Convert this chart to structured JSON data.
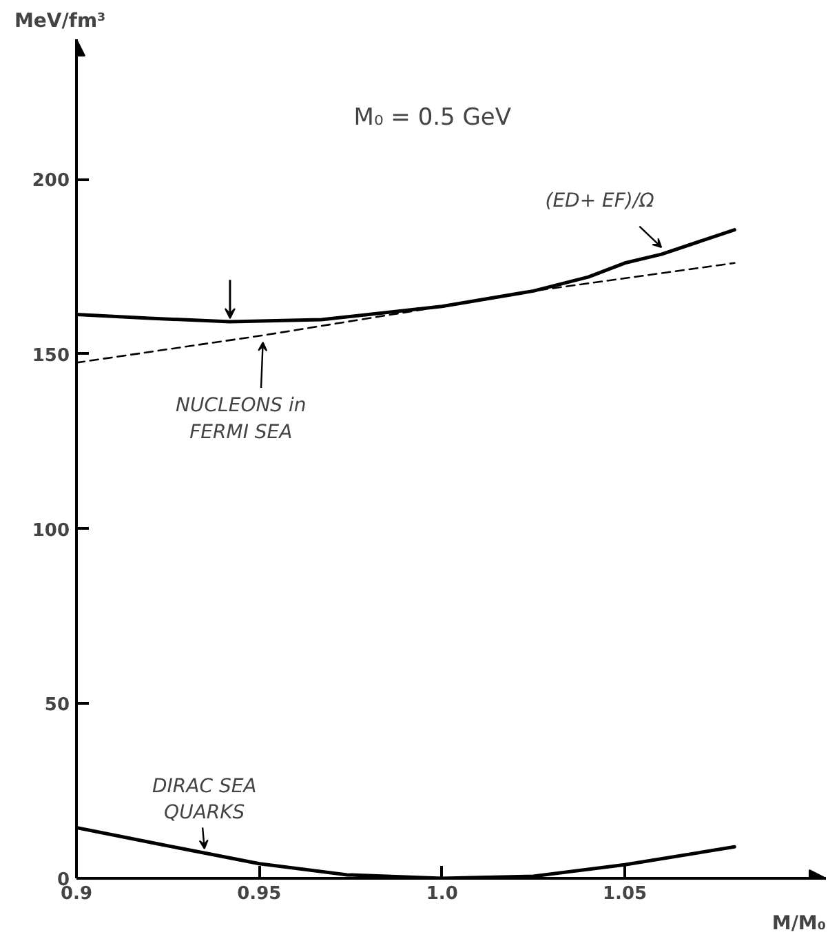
{
  "chart_data": {
    "type": "line",
    "xlabel": "M/M₀",
    "ylabel": "MeV/fm³",
    "xlim": [
      0.9,
      1.105
    ],
    "ylim": [
      0,
      240
    ],
    "xticks": [
      {
        "value": 0.9,
        "label": "0.9"
      },
      {
        "value": 0.95,
        "label": "0.95"
      },
      {
        "value": 1.0,
        "label": "1.0"
      },
      {
        "value": 1.05,
        "label": "1.05"
      }
    ],
    "yticks": [
      0,
      50,
      100,
      150,
      200
    ],
    "grid": false,
    "line_style": "solid",
    "series": [
      {
        "color": "#000000",
        "x": [
          0.9,
          0.92,
          0.942,
          0.967,
          1.0,
          1.025,
          1.04,
          1.05,
          1.06,
          1.08
        ],
        "values": [
          161.3,
          160.2,
          159.2,
          159.8,
          163.6,
          168,
          172,
          176,
          178.5,
          185.5
        ]
      },
      {
        "color": "#000000",
        "line_style": "dashed",
        "x": [
          0.9,
          0.951,
          1.0,
          1.025,
          1.08
        ],
        "values": [
          147.5,
          155.3,
          163.6,
          168,
          176
        ]
      },
      {
        "color": "#000000",
        "x": [
          0.9,
          0.923,
          0.95,
          0.974,
          1.0,
          1.025,
          1.05,
          1.08
        ],
        "values": [
          14.5,
          9.7,
          4.2,
          1,
          0,
          0.6,
          3.9,
          9
        ]
      }
    ],
    "annotations": [
      {
        "text": "M₀ =  0.5 GeV"
      },
      {
        "text": "(ED+ EF)/Ω",
        "x": 1.06,
        "y": 178.5
      },
      {
        "text": "NUCLEONS in\nFERMI SEA",
        "x": 0.951,
        "y": 155.3
      },
      {
        "text": "DIRAC SEA\nQUARKS",
        "x": 0.935,
        "y": 6.5
      }
    ]
  }
}
